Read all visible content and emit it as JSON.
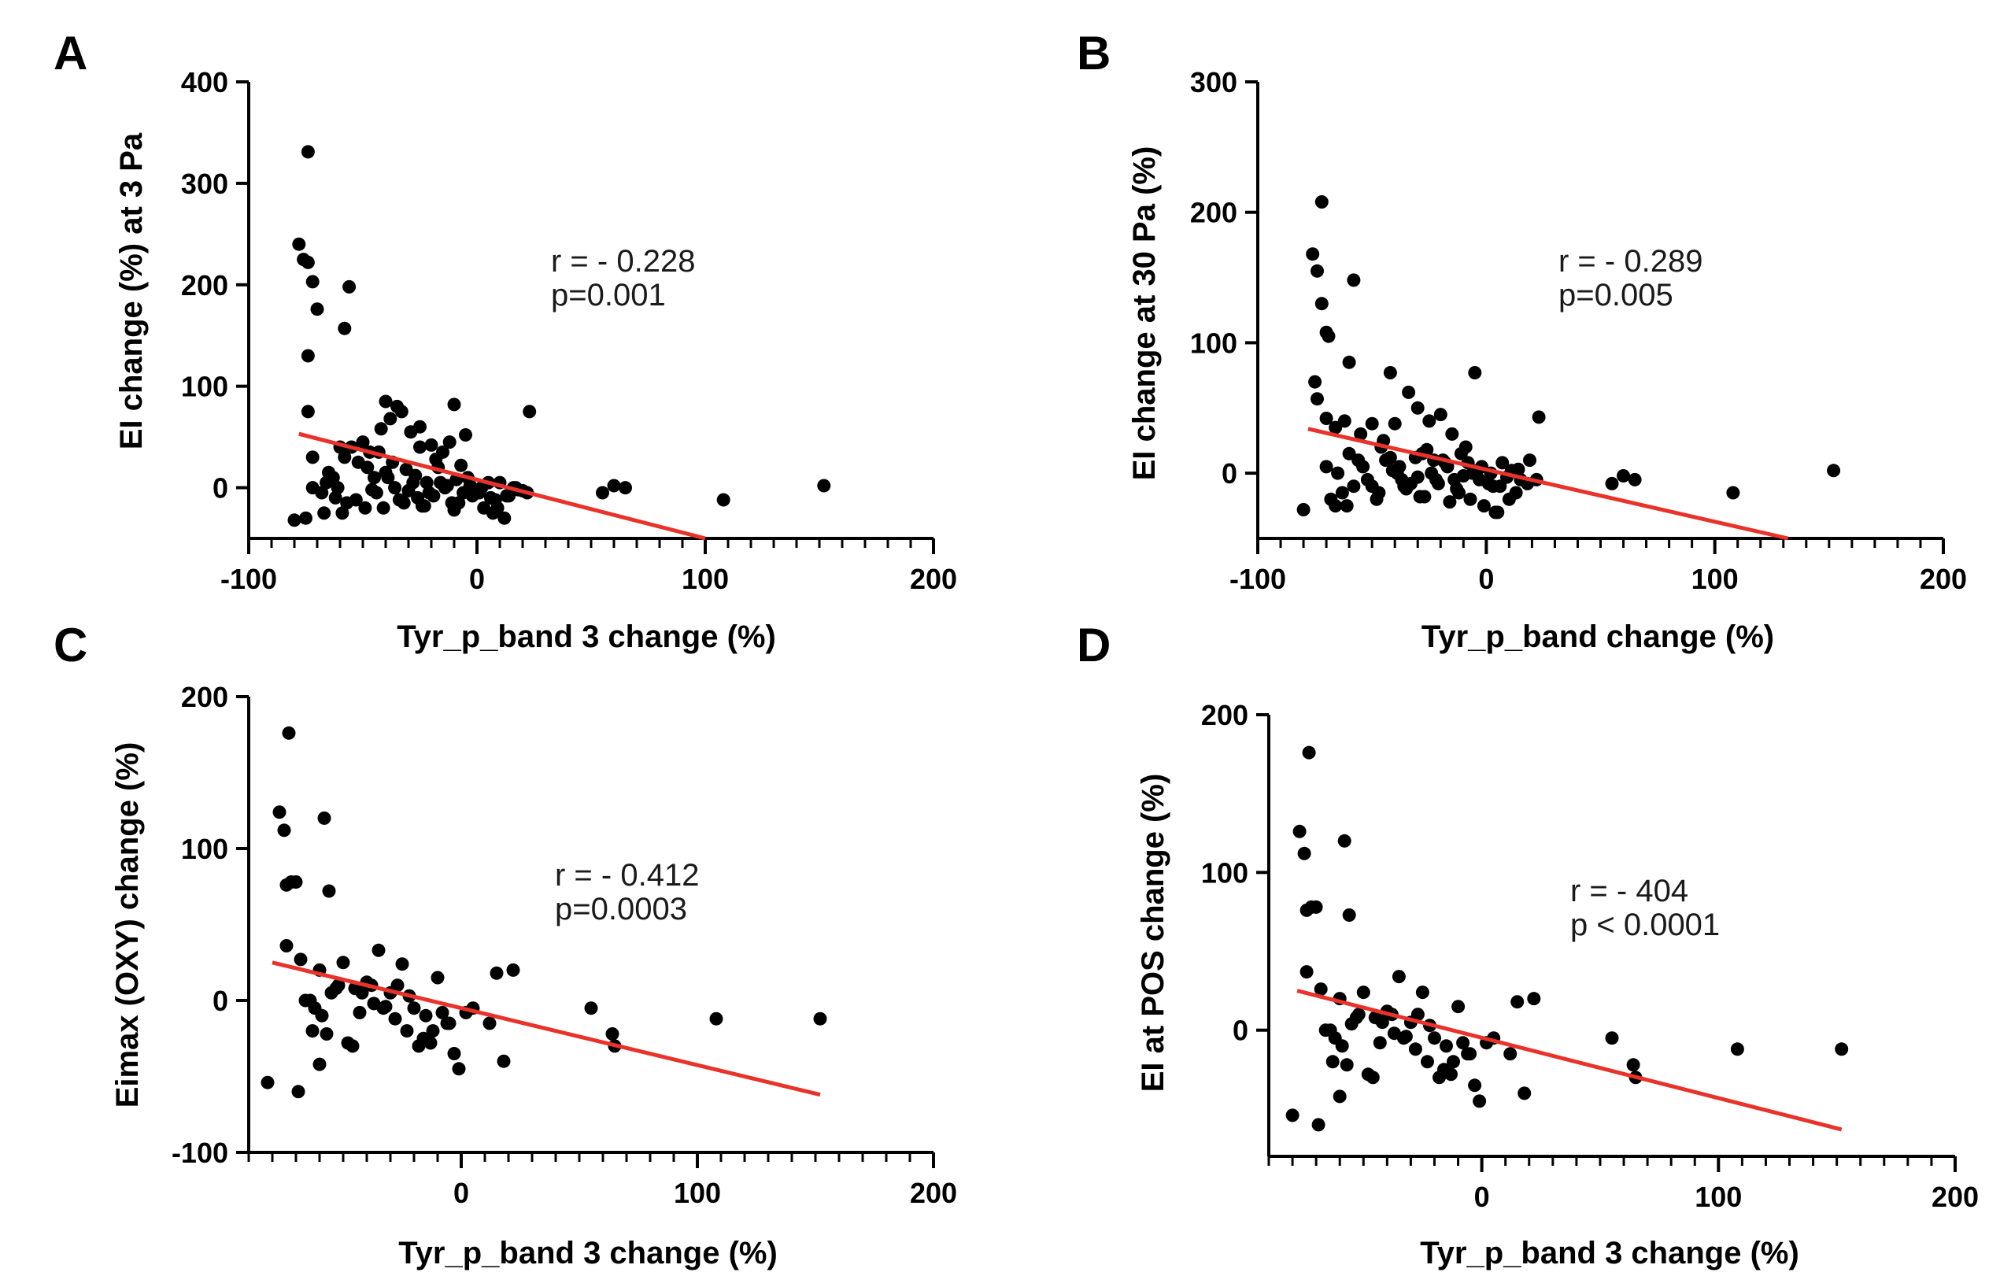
{
  "colors": {
    "point": "#000000",
    "regression_line": "#e8322a",
    "axis": "#000000"
  },
  "chart_data": [
    {
      "panel": "A",
      "type": "scatter",
      "xlabel": "Tyr_p_band 3 change (%)",
      "ylabel": "EI change (%)  at 3 Pa",
      "xlim": [
        -100,
        200
      ],
      "ylim": [
        -50,
        400
      ],
      "xticks": [
        -100,
        0,
        100,
        200
      ],
      "yticks": [
        0,
        100,
        200,
        300,
        400
      ],
      "annotation": [
        "r = - 0.228",
        "p=0.001"
      ],
      "regression": {
        "x": [
          -78,
          100
        ],
        "y": [
          53,
          -50
        ]
      },
      "points": {
        "x": [
          -74,
          -78,
          -76,
          -74,
          -72,
          -70,
          -74,
          -58,
          -56,
          -74,
          -72,
          -60,
          -72,
          -55,
          -63,
          -50,
          -47,
          -42,
          -38,
          -35,
          -33,
          -29,
          -25,
          -20,
          -15,
          -10,
          -5,
          -25,
          -12,
          -40,
          -65,
          -68,
          -66,
          -61,
          -58,
          -52,
          -45,
          -40,
          -36,
          -30,
          -27,
          -22,
          -17,
          -14,
          -9,
          -6,
          -3,
          2,
          6,
          10,
          14,
          18,
          22,
          -62,
          -57,
          -49,
          -44,
          -39,
          -34,
          -28,
          -24,
          -19,
          -13,
          -8,
          -4,
          1,
          5,
          9,
          13,
          17,
          20,
          -59,
          -53,
          -46,
          -41,
          -37,
          -31,
          -26,
          -21,
          -16,
          -11,
          -7,
          -2,
          3,
          7,
          12,
          16,
          -48,
          -43,
          -32,
          -23,
          -18,
          -10,
          8,
          -80,
          -75,
          -67,
          23,
          55,
          60,
          65,
          108,
          152
        ],
        "y": [
          331,
          240,
          225,
          222,
          203,
          176,
          130,
          157,
          198,
          75,
          30,
          40,
          0,
          40,
          10,
          45,
          35,
          58,
          68,
          80,
          75,
          55,
          40,
          42,
          35,
          82,
          52,
          60,
          45,
          85,
          15,
          -5,
          5,
          0,
          30,
          25,
          10,
          15,
          0,
          -3,
          12,
          5,
          20,
          0,
          8,
          -5,
          2,
          0,
          -10,
          5,
          -8,
          -2,
          -5,
          -10,
          -15,
          -20,
          -5,
          10,
          -12,
          5,
          -18,
          -8,
          2,
          -15,
          10,
          -5,
          5,
          -20,
          -8,
          0,
          -3,
          -25,
          -12,
          -2,
          -20,
          25,
          18,
          -10,
          -5,
          5,
          -15,
          22,
          -8,
          -20,
          -25,
          -30,
          0,
          20,
          35,
          -15,
          -18,
          28,
          -22,
          -12,
          -32,
          -30,
          -25,
          75,
          -5,
          2,
          0,
          -12,
          2
        ]
      }
    },
    {
      "panel": "B",
      "type": "scatter",
      "xlabel": "Tyr_p_band change (%)",
      "ylabel": "EI change at 30 Pa (%)",
      "xlim": [
        -100,
        200
      ],
      "ylim": [
        -50,
        300
      ],
      "xticks": [
        -100,
        0,
        100,
        200
      ],
      "yticks": [
        0,
        100,
        200,
        300
      ],
      "annotation": [
        "r = - 0.289",
        "p=0.005"
      ],
      "regression": {
        "x": [
          -78,
          132
        ],
        "y": [
          34,
          -50
        ]
      },
      "points": {
        "x": [
          -72,
          -76,
          -74,
          -72,
          -70,
          -69,
          -58,
          -75,
          -74,
          -70,
          -60,
          -66,
          -62,
          -55,
          -50,
          -42,
          -34,
          -30,
          -25,
          -15,
          -5,
          -40,
          -20,
          -70,
          -65,
          -60,
          -56,
          -52,
          -46,
          -42,
          -38,
          -33,
          -28,
          -24,
          -19,
          -14,
          -9,
          -6,
          -2,
          3,
          7,
          11,
          15,
          19,
          -63,
          -58,
          -54,
          -48,
          -44,
          -39,
          -35,
          -30,
          -26,
          -21,
          -17,
          -12,
          -8,
          -3,
          2,
          6,
          10,
          14,
          18,
          22,
          -68,
          -61,
          -47,
          -41,
          -36,
          -31,
          -27,
          -22,
          -18,
          -13,
          -11,
          -7,
          -4,
          1,
          5,
          9,
          13,
          -50,
          -45,
          -37,
          -29,
          -23,
          -16,
          -10,
          -1,
          4,
          -80,
          -66,
          23,
          55,
          60,
          65,
          108,
          152
        ],
        "y": [
          208,
          168,
          155,
          130,
          108,
          105,
          148,
          70,
          57,
          42,
          85,
          35,
          40,
          30,
          38,
          77,
          62,
          50,
          40,
          30,
          77,
          38,
          45,
          5,
          0,
          15,
          10,
          -5,
          20,
          12,
          5,
          -8,
          15,
          0,
          10,
          -5,
          20,
          0,
          5,
          -10,
          8,
          2,
          -5,
          10,
          -15,
          -10,
          5,
          -20,
          10,
          0,
          -12,
          -3,
          18,
          -8,
          5,
          -15,
          8,
          -5,
          0,
          -10,
          -20,
          3,
          -8,
          -5,
          -20,
          -25,
          -15,
          2,
          -10,
          12,
          -18,
          -5,
          8,
          -12,
          15,
          -20,
          2,
          -8,
          -30,
          -3,
          -15,
          -10,
          25,
          -5,
          -18,
          10,
          -22,
          -2,
          -25,
          -30,
          -28,
          -25,
          43,
          -8,
          -2,
          -5,
          -15,
          2
        ]
      }
    },
    {
      "panel": "C",
      "type": "scatter",
      "xlabel": "Tyr_p_band 3 change (%)",
      "ylabel": "Eimax (OXY) change (%)",
      "xlim": [
        -90,
        200
      ],
      "ylim": [
        -100,
        200
      ],
      "xticks": [
        0,
        100,
        200
      ],
      "yticks": [
        -100,
        0,
        100,
        200
      ],
      "annotation": [
        "r = - 0.412",
        "p=0.0003"
      ],
      "regression": {
        "x": [
          -80,
          152
        ],
        "y": [
          25,
          -62
        ]
      },
      "points": {
        "x": [
          -73,
          -77,
          -75,
          -74,
          -72,
          -70,
          -58,
          -56,
          -74,
          -68,
          -60,
          -50,
          -55,
          -52,
          -45,
          -40,
          -35,
          -30,
          -25,
          -20,
          -15,
          -10,
          -5,
          2,
          5,
          12,
          15,
          18,
          22,
          55,
          64,
          65,
          108,
          152,
          -82,
          -69,
          -63,
          -60,
          -57,
          -48,
          -42,
          -38,
          -33,
          -28,
          -22,
          -18,
          -12,
          -8,
          -3,
          -64,
          -59,
          -46,
          -37,
          -27,
          -13,
          -6,
          -1,
          -66,
          -62,
          -53,
          -43,
          -32,
          -23,
          -16
        ],
        "y": [
          176,
          124,
          112,
          76,
          78,
          78,
          120,
          72,
          36,
          27,
          20,
          25,
          5,
          10,
          8,
          12,
          33,
          5,
          24,
          -5,
          -10,
          15,
          -15,
          -8,
          -5,
          -15,
          18,
          -40,
          20,
          -5,
          -22,
          -30,
          -12,
          -12,
          -54,
          -60,
          -20,
          -42,
          -22,
          -28,
          5,
          10,
          -5,
          -12,
          3,
          -30,
          -20,
          -8,
          -35,
          0,
          -10,
          -30,
          -2,
          10,
          -28,
          -15,
          -45,
          0,
          -5,
          8,
          -8,
          -4,
          -20,
          -25
        ]
      }
    },
    {
      "panel": "D",
      "type": "scatter",
      "xlabel": "Tyr_p_band 3 change (%)",
      "ylabel": "EI at POS change (%)",
      "xlim": [
        -90,
        200
      ],
      "ylim": [
        -80,
        200
      ],
      "xticks": [
        0,
        100,
        200
      ],
      "yticks": [
        0,
        100,
        200
      ],
      "annotation": [
        "r = - 404",
        "p < 0.0001"
      ],
      "regression": {
        "x": [
          -78,
          152
        ],
        "y": [
          25,
          -63
        ]
      },
      "points": {
        "x": [
          -73,
          -77,
          -75,
          -74,
          -72,
          -70,
          -58,
          -56,
          -74,
          -68,
          -60,
          -50,
          -55,
          -52,
          -45,
          -40,
          -35,
          -30,
          -25,
          -20,
          -15,
          -10,
          -5,
          2,
          5,
          12,
          15,
          18,
          22,
          55,
          64,
          65,
          108,
          152,
          -80,
          -69,
          -63,
          -60,
          -57,
          -48,
          -42,
          -38,
          -33,
          -28,
          -22,
          -18,
          -12,
          -8,
          -3,
          -64,
          -59,
          -46,
          -37,
          -27,
          -13,
          -6,
          -1,
          -66,
          -62,
          -53,
          -43,
          -32,
          -23,
          -16
        ],
        "y": [
          176,
          126,
          112,
          76,
          78,
          78,
          120,
          73,
          37,
          26,
          20,
          24,
          4,
          10,
          8,
          12,
          34,
          5,
          24,
          -5,
          -10,
          15,
          -15,
          -8,
          -5,
          -15,
          18,
          -40,
          20,
          -5,
          -22,
          -30,
          -12,
          -12,
          -54,
          -60,
          -20,
          -42,
          -22,
          -28,
          5,
          10,
          -5,
          -12,
          3,
          -30,
          -20,
          -8,
          -35,
          0,
          -10,
          -30,
          -2,
          10,
          -28,
          -15,
          -45,
          0,
          -5,
          8,
          -8,
          -4,
          -20,
          -25
        ]
      }
    }
  ]
}
